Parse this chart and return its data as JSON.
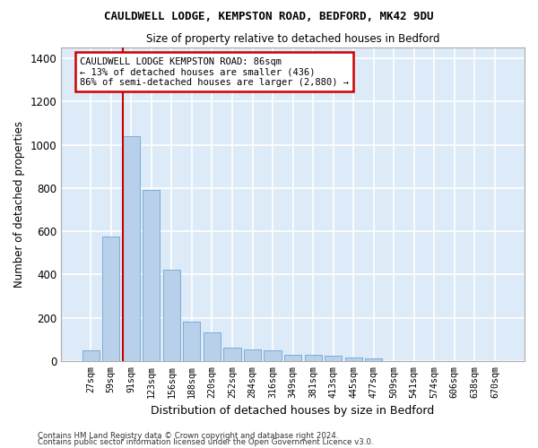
{
  "title1": "CAULDWELL LODGE, KEMPSTON ROAD, BEDFORD, MK42 9DU",
  "title2": "Size of property relative to detached houses in Bedford",
  "xlabel": "Distribution of detached houses by size in Bedford",
  "ylabel": "Number of detached properties",
  "bar_color": "#b8d0ea",
  "bar_edge_color": "#7aadd4",
  "background_color": "#ddeaf8",
  "grid_color": "#ffffff",
  "categories": [
    "27sqm",
    "59sqm",
    "91sqm",
    "123sqm",
    "156sqm",
    "188sqm",
    "220sqm",
    "252sqm",
    "284sqm",
    "316sqm",
    "349sqm",
    "381sqm",
    "413sqm",
    "445sqm",
    "477sqm",
    "509sqm",
    "541sqm",
    "574sqm",
    "606sqm",
    "638sqm",
    "670sqm"
  ],
  "values": [
    47,
    575,
    1040,
    790,
    420,
    180,
    130,
    60,
    55,
    47,
    28,
    27,
    22,
    14,
    10,
    0,
    0,
    0,
    0,
    0,
    0
  ],
  "ylim": [
    0,
    1450
  ],
  "yticks": [
    0,
    200,
    400,
    600,
    800,
    1000,
    1200,
    1400
  ],
  "red_line_index": 2,
  "annotation_text": "CAULDWELL LODGE KEMPSTON ROAD: 86sqm\n← 13% of detached houses are smaller (436)\n86% of semi-detached houses are larger (2,880) →",
  "annotation_box_color": "#ffffff",
  "annotation_border_color": "#cc0000",
  "red_line_color": "#cc0000",
  "footer1": "Contains HM Land Registry data © Crown copyright and database right 2024.",
  "footer2": "Contains public sector information licensed under the Open Government Licence v3.0."
}
